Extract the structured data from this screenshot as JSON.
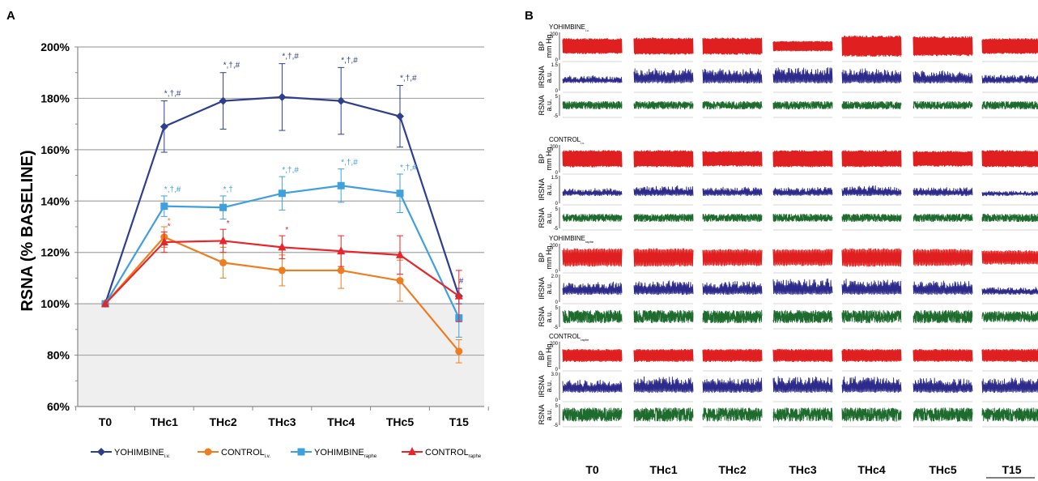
{
  "panel_a": {
    "letter": "A",
    "chart_data": {
      "type": "line",
      "ylabel": "RSNA (% BASELINE)",
      "xlabel": "",
      "categories": [
        "T0",
        "THc1",
        "THc2",
        "THc3",
        "THc4",
        "THc5",
        "T15"
      ],
      "ylim": [
        60,
        200
      ],
      "yticks": [
        "60%",
        "80%",
        "100%",
        "120%",
        "140%",
        "160%",
        "180%",
        "200%"
      ],
      "grid": true,
      "shaded_band": [
        60,
        100
      ],
      "legend_position": "bottom",
      "series": [
        {
          "key": "yoh_iv",
          "name_main": "YOHIMBINE",
          "name_sub": "i.v.",
          "color": "#2e3f8f",
          "marker": "diamond",
          "values": [
            100,
            169,
            179,
            180.5,
            179,
            173,
            103
          ],
          "errors": [
            0,
            10,
            11,
            13,
            13,
            12,
            3
          ],
          "annotations": [
            "",
            "*,†,#",
            "*,†,#",
            "*,†,#",
            "*,†,#",
            "*,†,#",
            "#"
          ]
        },
        {
          "key": "ctl_iv",
          "name_main": "CONTROL",
          "name_sub": "i.v.",
          "color": "#ee7d22",
          "marker": "circle",
          "values": [
            100,
            126,
            116,
            113,
            113,
            109,
            81.5
          ],
          "errors": [
            0,
            4,
            6,
            6,
            7,
            8,
            4.5
          ],
          "annotations": [
            "",
            "*",
            "",
            "",
            "",
            "",
            ""
          ]
        },
        {
          "key": "yoh_raphe",
          "name_main": "YOHIMBINE",
          "name_sub": "raphe",
          "color": "#3fa0dd",
          "marker": "square",
          "values": [
            100,
            138,
            137.5,
            143,
            146,
            143,
            94.5
          ],
          "errors": [
            0,
            4,
            4.5,
            6.5,
            6.5,
            7.5,
            7.5
          ],
          "annotations": [
            "",
            "*,†,#",
            "*,†",
            "*,†,#",
            "*,†,#",
            "*,†,#",
            ""
          ]
        },
        {
          "key": "ctl_raphe",
          "name_main": "CONTROL",
          "name_sub": "raphe",
          "color": "#e8262a",
          "marker": "triangle",
          "values": [
            100,
            124,
            124.5,
            122,
            120.5,
            119,
            103
          ],
          "errors": [
            0,
            4,
            4.5,
            4.5,
            6,
            7.5,
            10
          ],
          "annotations": [
            "",
            "*",
            "*",
            "*",
            "",
            "",
            ""
          ]
        }
      ]
    }
  },
  "panel_b": {
    "letter": "B",
    "chart_data": {
      "type": "line",
      "xlabel": "",
      "categories": [
        "T0",
        "THc1",
        "THc2",
        "THc3",
        "THc4",
        "THc5",
        "T15"
      ],
      "groups": [
        {
          "title_main": "YOHIMBINE",
          "title_sub": "i.v.",
          "traces": [
            {
              "label": [
                "BP",
                "mm Hg"
              ],
              "ymax": "200",
              "ymin": "0",
              "color": "#e02020",
              "amplitude": [
                0.55,
                0.6,
                0.6,
                0.35,
                0.75,
                0.7,
                0.55
              ],
              "density": 2.2
            },
            {
              "label": [
                "IRSNA",
                "a.u."
              ],
              "ymax": "1.5",
              "ymin": "0",
              "color": "#2c2a8a",
              "amplitude": [
                0.25,
                0.55,
                0.55,
                0.6,
                0.55,
                0.45,
                0.3
              ],
              "density": 1.6
            },
            {
              "label": [
                "RSNA",
                "a.u."
              ],
              "ymax": "5",
              "ymin": "-5",
              "color": "#1e6b2e",
              "amplitude": [
                0.18,
                0.18,
                0.18,
                0.18,
                0.18,
                0.18,
                0.18
              ],
              "density": 6
            }
          ]
        },
        {
          "title_main": "CONTROL",
          "title_sub": "i.v.",
          "traces": [
            {
              "label": [
                "BP",
                "mm Hg"
              ],
              "ymax": "200",
              "ymin": "0",
              "color": "#e02020",
              "amplitude": [
                0.6,
                0.6,
                0.55,
                0.6,
                0.6,
                0.55,
                0.6
              ],
              "density": 2.2
            },
            {
              "label": [
                "IRSNA",
                "a.u."
              ],
              "ymax": "1.5",
              "ymin": "0",
              "color": "#2c2a8a",
              "amplitude": [
                0.25,
                0.35,
                0.3,
                0.3,
                0.35,
                0.3,
                0.15
              ],
              "density": 1.6
            },
            {
              "label": [
                "RSNA",
                "a.u."
              ],
              "ymax": "5",
              "ymin": "-5",
              "color": "#1e6b2e",
              "amplitude": [
                0.18,
                0.18,
                0.18,
                0.18,
                0.18,
                0.18,
                0.18
              ],
              "density": 6
            }
          ]
        },
        {
          "title_main": "YOHIMBINE",
          "title_sub": "raphe",
          "traces": [
            {
              "label": [
                "BP",
                "mm Hg"
              ],
              "ymax": "200",
              "ymin": "0",
              "color": "#e02020",
              "amplitude": [
                0.65,
                0.65,
                0.6,
                0.6,
                0.65,
                0.6,
                0.5
              ],
              "density": 1.4
            },
            {
              "label": [
                "IRSNA",
                "a.u."
              ],
              "ymax": "2.0",
              "ymin": "0",
              "color": "#2c2a8a",
              "amplitude": [
                0.45,
                0.5,
                0.5,
                0.6,
                0.6,
                0.5,
                0.25
              ],
              "density": 1.6
            },
            {
              "label": [
                "RSNA",
                "a.u."
              ],
              "ymax": "5",
              "ymin": "-5",
              "color": "#1e6b2e",
              "amplitude": [
                0.3,
                0.3,
                0.3,
                0.3,
                0.3,
                0.3,
                0.25
              ],
              "density": 6
            }
          ]
        },
        {
          "title_main": "CONTROL",
          "title_sub": "raphe",
          "traces": [
            {
              "label": [
                "BP",
                "mm Hg"
              ],
              "ymax": "200",
              "ymin": "0",
              "color": "#e02020",
              "amplitude": [
                0.45,
                0.45,
                0.45,
                0.45,
                0.45,
                0.45,
                0.45
              ],
              "density": 1.6
            },
            {
              "label": [
                "IRSNA",
                "a.u."
              ],
              "ymax": "3.0",
              "ymin": "0",
              "color": "#2c2a8a",
              "amplitude": [
                0.45,
                0.6,
                0.55,
                0.6,
                0.6,
                0.55,
                0.55
              ],
              "density": 1.6
            },
            {
              "label": [
                "RSNA",
                "a.u."
              ],
              "ymax": "5",
              "ymin": "-5",
              "color": "#1e6b2e",
              "amplitude": [
                0.32,
                0.32,
                0.32,
                0.32,
                0.32,
                0.32,
                0.32
              ],
              "density": 6
            }
          ]
        }
      ]
    }
  }
}
